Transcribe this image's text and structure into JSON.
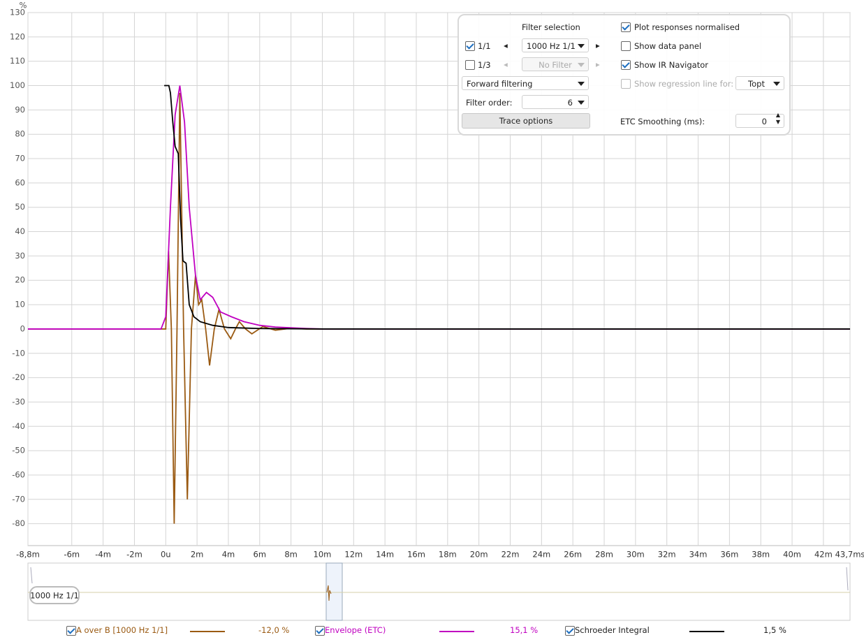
{
  "chart_data": {
    "type": "line",
    "y_label": "%",
    "xlim": [
      -8.8,
      43.7
    ],
    "ylim": [
      -89,
      130
    ],
    "xticks": [
      {
        "value": -8.8,
        "label": "-8,8m"
      },
      {
        "value": -6,
        "label": "-6m"
      },
      {
        "value": -4,
        "label": "-4m"
      },
      {
        "value": -2,
        "label": "-2m"
      },
      {
        "value": 0,
        "label": "0u"
      },
      {
        "value": 2,
        "label": "2m"
      },
      {
        "value": 4,
        "label": "4m"
      },
      {
        "value": 6,
        "label": "6m"
      },
      {
        "value": 8,
        "label": "8m"
      },
      {
        "value": 10,
        "label": "10m"
      },
      {
        "value": 12,
        "label": "12m"
      },
      {
        "value": 14,
        "label": "14m"
      },
      {
        "value": 16,
        "label": "16m"
      },
      {
        "value": 18,
        "label": "18m"
      },
      {
        "value": 20,
        "label": "20m"
      },
      {
        "value": 22,
        "label": "22m"
      },
      {
        "value": 24,
        "label": "24m"
      },
      {
        "value": 26,
        "label": "26m"
      },
      {
        "value": 28,
        "label": "28m"
      },
      {
        "value": 30,
        "label": "30m"
      },
      {
        "value": 32,
        "label": "32m"
      },
      {
        "value": 34,
        "label": "34m"
      },
      {
        "value": 36,
        "label": "36m"
      },
      {
        "value": 38,
        "label": "38m"
      },
      {
        "value": 40,
        "label": "40m"
      },
      {
        "value": 42,
        "label": "42m"
      },
      {
        "value": 43.7,
        "label": "43,7ms"
      }
    ],
    "yticks": [
      130,
      120,
      110,
      100,
      90,
      80,
      70,
      60,
      50,
      40,
      30,
      20,
      10,
      0,
      -10,
      -20,
      -30,
      -40,
      -50,
      -60,
      -70,
      -80
    ],
    "grid": true,
    "series": [
      {
        "name": "A over B [1000 Hz 1/1]",
        "color": "#9a5a12",
        "readout": "-12,0 %",
        "checked": true,
        "x": [
          -8.8,
          -0.2,
          0,
          0.18,
          0.36,
          0.54,
          0.72,
          0.9,
          1.14,
          1.38,
          1.64,
          1.9,
          2.1,
          2.3,
          2.55,
          2.8,
          3.1,
          3.4,
          3.75,
          4.15,
          4.45,
          4.7,
          5.1,
          5.5,
          6.2,
          7,
          8,
          9,
          43.7
        ],
        "values": [
          0,
          0,
          0,
          32,
          0,
          -80,
          0,
          97,
          0,
          -70,
          0,
          22,
          10,
          12,
          0,
          -15,
          0,
          8,
          0,
          -4,
          0,
          3,
          0,
          -2,
          1,
          -0.5,
          0.3,
          0,
          0
        ]
      },
      {
        "name": "Envelope (ETC)",
        "color": "#c000c0",
        "readout": "15,1 %",
        "checked": true,
        "x": [
          -8.8,
          -0.3,
          0,
          0.3,
          0.6,
          0.9,
          1.2,
          1.5,
          1.9,
          2.2,
          2.6,
          3,
          3.5,
          4.2,
          5,
          6,
          7,
          9,
          10,
          43.7
        ],
        "values": [
          0,
          0,
          5,
          50,
          88,
          100,
          85,
          50,
          22,
          12,
          15,
          13,
          7,
          5,
          3,
          1.5,
          0.8,
          0.2,
          0,
          0
        ]
      },
      {
        "name": "Schroeder Integral",
        "color": "#000000",
        "readout": "1,5 %",
        "checked": true,
        "x": [
          -0.1,
          0.2,
          0.3,
          0.45,
          0.6,
          0.8,
          0.95,
          1.1,
          1.3,
          1.5,
          1.8,
          2.2,
          3,
          4,
          6,
          10,
          43.7
        ],
        "values": [
          100,
          100,
          97,
          85,
          75,
          72,
          45,
          28,
          27,
          10,
          5,
          3,
          1.5,
          0.6,
          0.2,
          0,
          0
        ]
      }
    ]
  },
  "controls": {
    "filter_selection": "Filter selection",
    "octave": {
      "label": "1/1",
      "checked": true,
      "value": "1000 Hz 1/1"
    },
    "third": {
      "label": "1/3",
      "checked": false,
      "value": "No Filter"
    },
    "filtering": "Forward filtering",
    "filter_order_label": "Filter order:",
    "filter_order": "6",
    "trace_options": "Trace options",
    "plot_normalised": {
      "label": "Plot responses normalised",
      "checked": true
    },
    "data_panel": {
      "label": "Show data panel",
      "checked": false
    },
    "ir_navigator": {
      "label": "Show IR Navigator",
      "checked": true
    },
    "regression": {
      "label": "Show regression line for:",
      "checked": false,
      "value": "Topt"
    },
    "etc_smoothing_label": "ETC Smoothing (ms):",
    "etc_smoothing": "0"
  },
  "navigator": {
    "label": "1000 Hz 1/1"
  }
}
